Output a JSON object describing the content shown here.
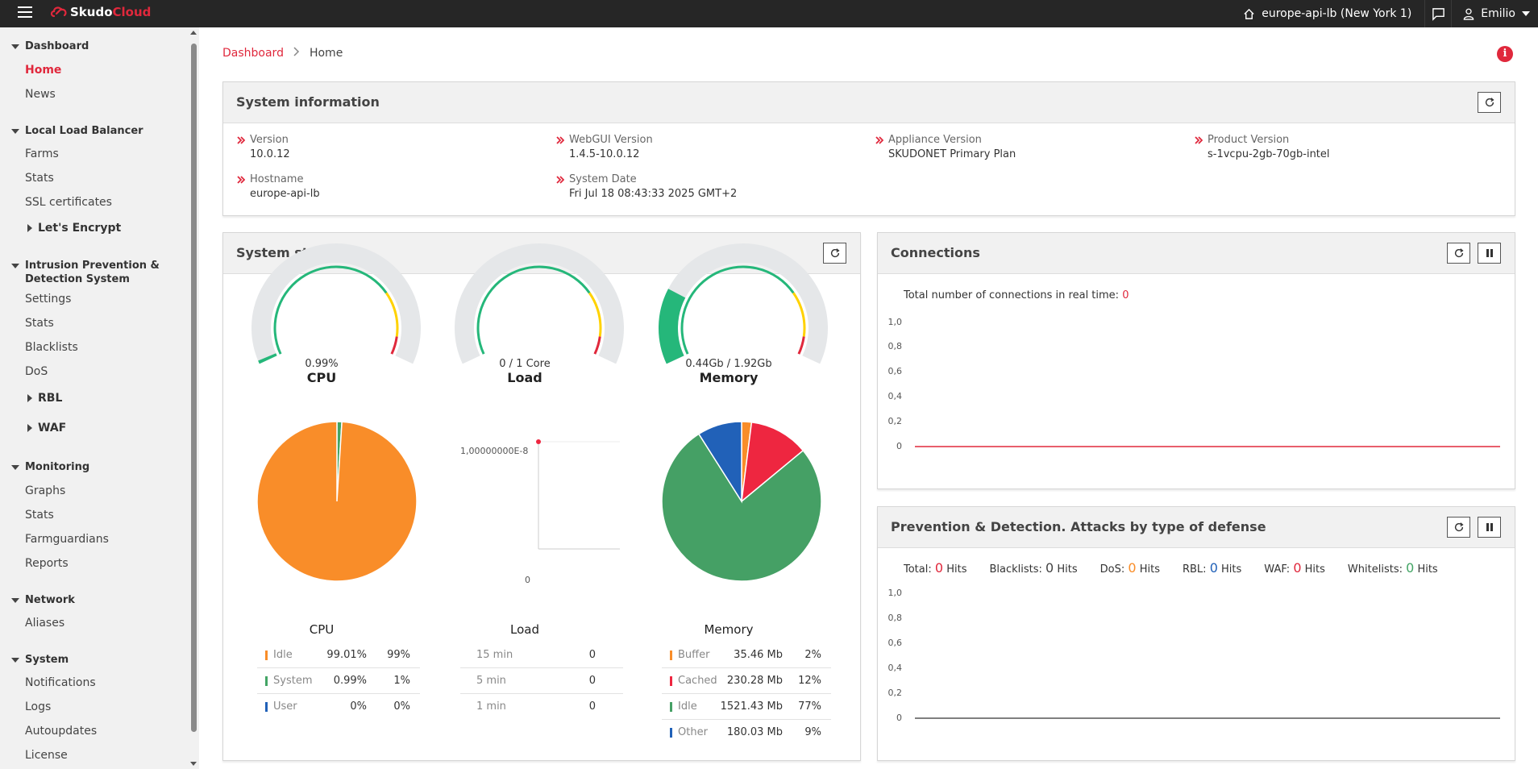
{
  "app": {
    "logo_part1": "Skudo",
    "logo_part2": "Cloud"
  },
  "topbar": {
    "load_balancer": "europe-api-lb (New York 1)",
    "user": "Emilio"
  },
  "sidebar": {
    "sections": [
      {
        "title": "Dashboard",
        "items": [
          "Home",
          "News"
        ]
      },
      {
        "title": "Local Load Balancer",
        "items": [
          "Farms",
          "Stats",
          "SSL certificates"
        ],
        "sub": [
          "Let's Encrypt"
        ]
      },
      {
        "title_line1": "Intrusion Prevention &",
        "title_line2": "Detection System",
        "items": [
          "Settings",
          "Stats",
          "Blacklists",
          "DoS"
        ],
        "sub": [
          "RBL",
          "WAF"
        ]
      },
      {
        "title": "Monitoring",
        "items": [
          "Graphs",
          "Stats",
          "Farmguardians",
          "Reports"
        ]
      },
      {
        "title": "Network",
        "items": [
          "Aliases"
        ]
      },
      {
        "title": "System",
        "items": [
          "Notifications",
          "Logs",
          "Autoupdates",
          "License"
        ]
      }
    ]
  },
  "breadcrumb": {
    "root": "Dashboard",
    "current": "Home"
  },
  "system_info": {
    "title": "System information",
    "fields": [
      {
        "label": "Version",
        "value": "10.0.12"
      },
      {
        "label": "WebGUI Version",
        "value": "1.4.5-10.0.12"
      },
      {
        "label": "Appliance Version",
        "value": "SKUDONET Primary Plan"
      },
      {
        "label": "Product Version",
        "value": "s-1vcpu-2gb-70gb-intel"
      },
      {
        "label": "Hostname",
        "value": "europe-api-lb"
      },
      {
        "label": "System Date",
        "value": "Fri Jul 18 08:43:33 2025 GMT+2"
      }
    ]
  },
  "system_stats": {
    "title": "System stats",
    "gauges": [
      {
        "value": "0.99%",
        "name": "CPU",
        "fraction": 0.0099
      },
      {
        "value": "0 / 1 Core",
        "name": "Load",
        "fraction": 0
      },
      {
        "value": "0.44Gb / 1.92Gb",
        "name": "Memory",
        "fraction": 0.229
      }
    ],
    "cpu": {
      "caption": "CPU",
      "rows": [
        {
          "name": "Idle",
          "v1": "99.01%",
          "v2": "99%",
          "color": "#f98d29"
        },
        {
          "name": "System",
          "v1": "0.99%",
          "v2": "1%",
          "color": "#43a565"
        },
        {
          "name": "User",
          "v1": "0%",
          "v2": "0%",
          "color": "#2161b8"
        }
      ]
    },
    "load": {
      "caption": "Load",
      "y_top": "1,00000000E-8",
      "y_bottom": "0",
      "rows": [
        {
          "name": "15 min",
          "v": "0"
        },
        {
          "name": "5 min",
          "v": "0"
        },
        {
          "name": "1 min",
          "v": "0"
        }
      ]
    },
    "memory": {
      "caption": "Memory",
      "rows": [
        {
          "name": "Buffer",
          "v1": "35.46 Mb",
          "v2": "2%",
          "color": "#f98d29"
        },
        {
          "name": "Cached",
          "v1": "230.28 Mb",
          "v2": "12%",
          "color": "#ee2640"
        },
        {
          "name": "Idle",
          "v1": "1521.43 Mb",
          "v2": "77%",
          "color": "#45a065"
        },
        {
          "name": "Other",
          "v1": "180.03 Mb",
          "v2": "9%",
          "color": "#2161b8"
        }
      ]
    }
  },
  "connections": {
    "title": "Connections",
    "label": "Total number of connections in real time:",
    "count": "0",
    "y_ticks": [
      "1,0",
      "0,8",
      "0,6",
      "0,4",
      "0,2",
      "0"
    ]
  },
  "prevention": {
    "title": "Prevention & Detection. Attacks by type of defense",
    "hits": [
      {
        "label": "Total:",
        "num": "0",
        "unit": "Hits",
        "color": "#e0283c"
      },
      {
        "label": "Blacklists:",
        "num": "0",
        "unit": "Hits",
        "color": "#444444"
      },
      {
        "label": "DoS:",
        "num": "0",
        "unit": "Hits",
        "color": "#f98d29"
      },
      {
        "label": "RBL:",
        "num": "0",
        "unit": "Hits",
        "color": "#2161b8"
      },
      {
        "label": "WAF:",
        "num": "0",
        "unit": "Hits",
        "color": "#e0283c"
      },
      {
        "label": "Whitelists:",
        "num": "0",
        "unit": "Hits",
        "color": "#43a565"
      }
    ],
    "y_ticks": [
      "1,0",
      "0,8",
      "0,6",
      "0,4",
      "0,2",
      "0"
    ]
  }
}
